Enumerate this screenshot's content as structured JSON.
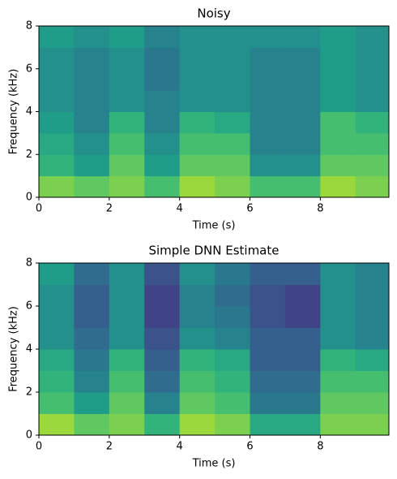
{
  "chart_data": [
    {
      "type": "heatmap",
      "title": "Noisy",
      "xlabel": "Time (s)",
      "ylabel": "Frequency (kHz)",
      "colormap": "viridis",
      "xlim": [
        0,
        9.95
      ],
      "ylim": [
        0,
        8
      ],
      "xticks": [
        0,
        2,
        4,
        6,
        8
      ],
      "yticks": [
        0,
        2,
        4,
        6,
        8
      ],
      "zlim": [
        0,
        1
      ],
      "x": [
        0,
        1,
        2,
        3,
        4,
        5,
        6,
        7,
        8,
        9
      ],
      "y": [
        0,
        1,
        2,
        3,
        4,
        5,
        6,
        7
      ],
      "z": [
        [
          0.8,
          0.75,
          0.8,
          0.7,
          0.85,
          0.8,
          0.7,
          0.7,
          0.85,
          0.8
        ],
        [
          0.65,
          0.55,
          0.75,
          0.55,
          0.75,
          0.75,
          0.5,
          0.5,
          0.75,
          0.75
        ],
        [
          0.6,
          0.5,
          0.7,
          0.5,
          0.7,
          0.7,
          0.45,
          0.45,
          0.7,
          0.7
        ],
        [
          0.55,
          0.45,
          0.65,
          0.45,
          0.65,
          0.6,
          0.45,
          0.45,
          0.7,
          0.65
        ],
        [
          0.5,
          0.45,
          0.5,
          0.45,
          0.5,
          0.5,
          0.45,
          0.45,
          0.55,
          0.5
        ],
        [
          0.5,
          0.45,
          0.5,
          0.4,
          0.5,
          0.5,
          0.45,
          0.45,
          0.55,
          0.5
        ],
        [
          0.5,
          0.45,
          0.5,
          0.4,
          0.5,
          0.5,
          0.45,
          0.45,
          0.55,
          0.5
        ],
        [
          0.55,
          0.5,
          0.55,
          0.45,
          0.5,
          0.5,
          0.5,
          0.5,
          0.55,
          0.5
        ]
      ]
    },
    {
      "type": "heatmap",
      "title": "Simple DNN Estimate",
      "xlabel": "Time (s)",
      "ylabel": "Frequency (kHz)",
      "colormap": "viridis",
      "xlim": [
        0,
        9.95
      ],
      "ylim": [
        0,
        8
      ],
      "xticks": [
        0,
        2,
        4,
        6,
        8
      ],
      "yticks": [
        0,
        2,
        4,
        6,
        8
      ],
      "zlim": [
        0,
        1
      ],
      "x": [
        0,
        1,
        2,
        3,
        4,
        5,
        6,
        7,
        8,
        9
      ],
      "y": [
        0,
        1,
        2,
        3,
        4,
        5,
        6,
        7
      ],
      "z": [
        [
          0.85,
          0.75,
          0.8,
          0.65,
          0.85,
          0.8,
          0.6,
          0.6,
          0.8,
          0.8
        ],
        [
          0.7,
          0.55,
          0.75,
          0.45,
          0.75,
          0.7,
          0.4,
          0.4,
          0.75,
          0.75
        ],
        [
          0.65,
          0.45,
          0.7,
          0.35,
          0.7,
          0.65,
          0.35,
          0.35,
          0.7,
          0.7
        ],
        [
          0.6,
          0.4,
          0.65,
          0.3,
          0.65,
          0.6,
          0.3,
          0.3,
          0.65,
          0.6
        ],
        [
          0.5,
          0.35,
          0.5,
          0.25,
          0.5,
          0.45,
          0.3,
          0.3,
          0.5,
          0.45
        ],
        [
          0.5,
          0.3,
          0.5,
          0.2,
          0.45,
          0.4,
          0.25,
          0.2,
          0.5,
          0.45
        ],
        [
          0.5,
          0.3,
          0.5,
          0.2,
          0.45,
          0.35,
          0.25,
          0.2,
          0.5,
          0.45
        ],
        [
          0.55,
          0.35,
          0.5,
          0.25,
          0.5,
          0.4,
          0.3,
          0.3,
          0.5,
          0.45
        ]
      ]
    }
  ]
}
